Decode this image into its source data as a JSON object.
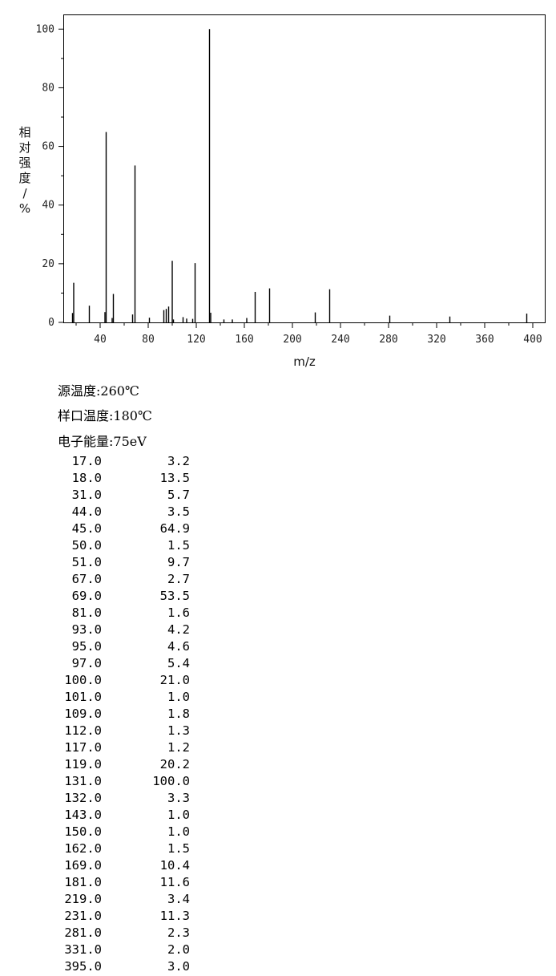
{
  "chart_data": {
    "type": "bar",
    "xlabel": "m/z",
    "ylabel": "相对强度/%",
    "xlim": [
      10,
      410
    ],
    "ylim": [
      0,
      105
    ],
    "xticks": [
      40,
      80,
      120,
      160,
      200,
      240,
      280,
      320,
      360,
      400
    ],
    "yticks": [
      0,
      20,
      40,
      60,
      80,
      100
    ],
    "grid": false,
    "peaks": [
      {
        "mz": 17,
        "intensity": 3.2
      },
      {
        "mz": 18,
        "intensity": 13.5
      },
      {
        "mz": 31,
        "intensity": 5.7
      },
      {
        "mz": 44,
        "intensity": 3.5
      },
      {
        "mz": 45,
        "intensity": 64.9
      },
      {
        "mz": 50,
        "intensity": 1.5
      },
      {
        "mz": 51,
        "intensity": 9.7
      },
      {
        "mz": 67,
        "intensity": 2.7
      },
      {
        "mz": 69,
        "intensity": 53.5
      },
      {
        "mz": 81,
        "intensity": 1.6
      },
      {
        "mz": 93,
        "intensity": 4.2
      },
      {
        "mz": 95,
        "intensity": 4.6
      },
      {
        "mz": 97,
        "intensity": 5.4
      },
      {
        "mz": 100,
        "intensity": 21.0
      },
      {
        "mz": 101,
        "intensity": 1.0
      },
      {
        "mz": 109,
        "intensity": 1.8
      },
      {
        "mz": 112,
        "intensity": 1.3
      },
      {
        "mz": 117,
        "intensity": 1.2
      },
      {
        "mz": 119,
        "intensity": 20.2
      },
      {
        "mz": 131,
        "intensity": 100.0
      },
      {
        "mz": 132,
        "intensity": 3.3
      },
      {
        "mz": 143,
        "intensity": 1.0
      },
      {
        "mz": 150,
        "intensity": 1.0
      },
      {
        "mz": 162,
        "intensity": 1.5
      },
      {
        "mz": 169,
        "intensity": 10.4
      },
      {
        "mz": 181,
        "intensity": 11.6
      },
      {
        "mz": 219,
        "intensity": 3.4
      },
      {
        "mz": 231,
        "intensity": 11.3
      },
      {
        "mz": 281,
        "intensity": 2.3
      },
      {
        "mz": 331,
        "intensity": 2.0
      },
      {
        "mz": 395,
        "intensity": 3.0
      }
    ]
  },
  "conditions": {
    "source_temp": "源温度:260℃",
    "inlet_temp": "样口温度:180℃",
    "electron_energy": "电子能量:75eV"
  },
  "peak_table": [
    [
      "17.0",
      "3.2"
    ],
    [
      "18.0",
      "13.5"
    ],
    [
      "31.0",
      "5.7"
    ],
    [
      "44.0",
      "3.5"
    ],
    [
      "45.0",
      "64.9"
    ],
    [
      "50.0",
      "1.5"
    ],
    [
      "51.0",
      "9.7"
    ],
    [
      "67.0",
      "2.7"
    ],
    [
      "69.0",
      "53.5"
    ],
    [
      "81.0",
      "1.6"
    ],
    [
      "93.0",
      "4.2"
    ],
    [
      "95.0",
      "4.6"
    ],
    [
      "97.0",
      "5.4"
    ],
    [
      "100.0",
      "21.0"
    ],
    [
      "101.0",
      "1.0"
    ],
    [
      "109.0",
      "1.8"
    ],
    [
      "112.0",
      "1.3"
    ],
    [
      "117.0",
      "1.2"
    ],
    [
      "119.0",
      "20.2"
    ],
    [
      "131.0",
      "100.0"
    ],
    [
      "132.0",
      "3.3"
    ],
    [
      "143.0",
      "1.0"
    ],
    [
      "150.0",
      "1.0"
    ],
    [
      "162.0",
      "1.5"
    ],
    [
      "169.0",
      "10.4"
    ],
    [
      "181.0",
      "11.6"
    ],
    [
      "219.0",
      "3.4"
    ],
    [
      "231.0",
      "11.3"
    ],
    [
      "281.0",
      "2.3"
    ],
    [
      "331.0",
      "2.0"
    ],
    [
      "395.0",
      "3.0"
    ]
  ]
}
